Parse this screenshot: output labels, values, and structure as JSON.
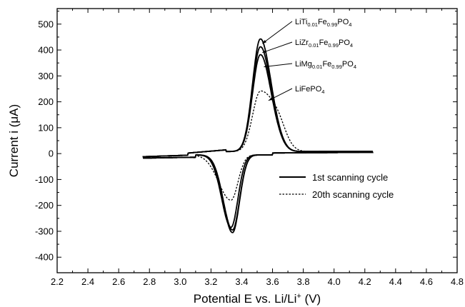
{
  "chart_data": {
    "type": "line",
    "xlabel": "Potential E vs. Li/Li⁺ (V)",
    "ylabel": "Current  i (μA)",
    "xlim": [
      2.2,
      4.8
    ],
    "ylim": [
      -460,
      560
    ],
    "xticks": [
      "2.2",
      "2.4",
      "2.6",
      "2.8",
      "3.0",
      "3.2",
      "3.4",
      "3.6",
      "3.8",
      "4.0",
      "4.2",
      "4.4",
      "4.6",
      "4.8"
    ],
    "yticks": [
      "-400",
      "-300",
      "-200",
      "-100",
      "0",
      "100",
      "200",
      "300",
      "400",
      "500"
    ],
    "legend": {
      "position": "lower-right",
      "entries": [
        {
          "label": "1st scanning cycle",
          "style": "solid"
        },
        {
          "label": "20th scanning cycle",
          "style": "dotted"
        }
      ]
    },
    "annotations": [
      {
        "text": "LiTi0.01Fe0.99PO4",
        "parts": [
          [
            "LiTi",
            ""
          ],
          [
            "0.01",
            "sub"
          ],
          [
            "Fe",
            ""
          ],
          [
            "0.99",
            "sub"
          ],
          [
            "PO",
            ""
          ],
          [
            "4",
            "sub"
          ]
        ],
        "point_x": 3.52,
        "point_y": 425
      },
      {
        "text": "LiZr0.01Fe0.99PO4",
        "parts": [
          [
            "LiZr",
            ""
          ],
          [
            "0.01",
            "sub"
          ],
          [
            "Fe",
            ""
          ],
          [
            "0.99",
            "sub"
          ],
          [
            "PO",
            ""
          ],
          [
            "4",
            "sub"
          ]
        ],
        "point_x": 3.52,
        "point_y": 390
      },
      {
        "text": "LiMg0.01Fe0.99PO4",
        "parts": [
          [
            "LiMg",
            ""
          ],
          [
            "0.01",
            "sub"
          ],
          [
            "Fe",
            ""
          ],
          [
            "0.99",
            "sub"
          ],
          [
            "PO",
            ""
          ],
          [
            "4",
            "sub"
          ]
        ],
        "point_x": 3.53,
        "point_y": 335
      },
      {
        "text": "LiFePO4",
        "parts": [
          [
            "LiFePO",
            ""
          ],
          [
            "4",
            "sub"
          ]
        ],
        "point_x": 3.56,
        "point_y": 205
      }
    ],
    "series": [
      {
        "name": "LiTi0.01Fe0.99PO4",
        "style": "solid",
        "peak_ox": [
          3.52,
          430
        ],
        "peak_red": [
          3.34,
          -300
        ]
      },
      {
        "name": "LiZr0.01Fe0.99PO4",
        "style": "solid",
        "peak_ox": [
          3.52,
          400
        ],
        "peak_red": [
          3.34,
          -290
        ]
      },
      {
        "name": "LiMg0.01Fe0.99PO4",
        "style": "solid",
        "peak_ox": [
          3.52,
          370
        ],
        "peak_red": [
          3.33,
          -280
        ]
      },
      {
        "name": "LiFePO4",
        "style": "dotted",
        "peak_ox": [
          3.52,
          230
        ],
        "peak_red": [
          3.33,
          -175
        ]
      }
    ]
  }
}
